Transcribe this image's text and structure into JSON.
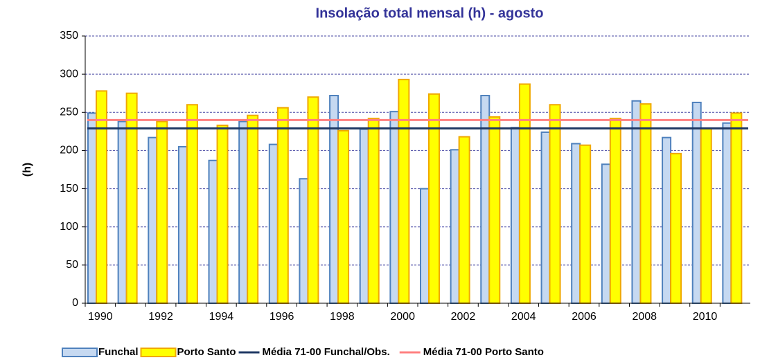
{
  "chart_data": {
    "type": "bar",
    "title": "Insolação total mensal (h) - agosto",
    "y_label": "(h)",
    "categories": [
      "1990",
      null,
      "1992",
      null,
      "1994",
      null,
      "1996",
      null,
      "1998",
      null,
      "2000",
      null,
      "2002",
      null,
      "2004",
      null,
      "2006",
      null,
      "2008",
      null,
      "2010",
      null
    ],
    "series": [
      {
        "name": "Funchal",
        "color": "#c6d9f1",
        "edge": "#4f81bd",
        "values": [
          249,
          238,
          217,
          205,
          187,
          238,
          208,
          163,
          272,
          228,
          251,
          150,
          201,
          272,
          230,
          224,
          209,
          182,
          265,
          217,
          263,
          236
        ]
      },
      {
        "name": "Porto Santo",
        "color": "#ffff00",
        "edge": "#f0a800",
        "values": [
          278,
          275,
          238,
          260,
          233,
          246,
          256,
          270,
          226,
          242,
          293,
          274,
          218,
          244,
          287,
          260,
          207,
          242,
          261,
          196,
          229,
          249
        ]
      }
    ],
    "reference_lines": [
      {
        "name": "Média 71-00 Funchal/Obs.",
        "color": "#1f3864",
        "value": 229
      },
      {
        "name": "Média 71-00 Porto Santo",
        "color": "#ff8080",
        "value": 240
      }
    ],
    "ylim": [
      0,
      350
    ],
    "yticks": [
      0,
      50,
      100,
      150,
      200,
      250,
      300,
      350
    ],
    "grid": true
  }
}
